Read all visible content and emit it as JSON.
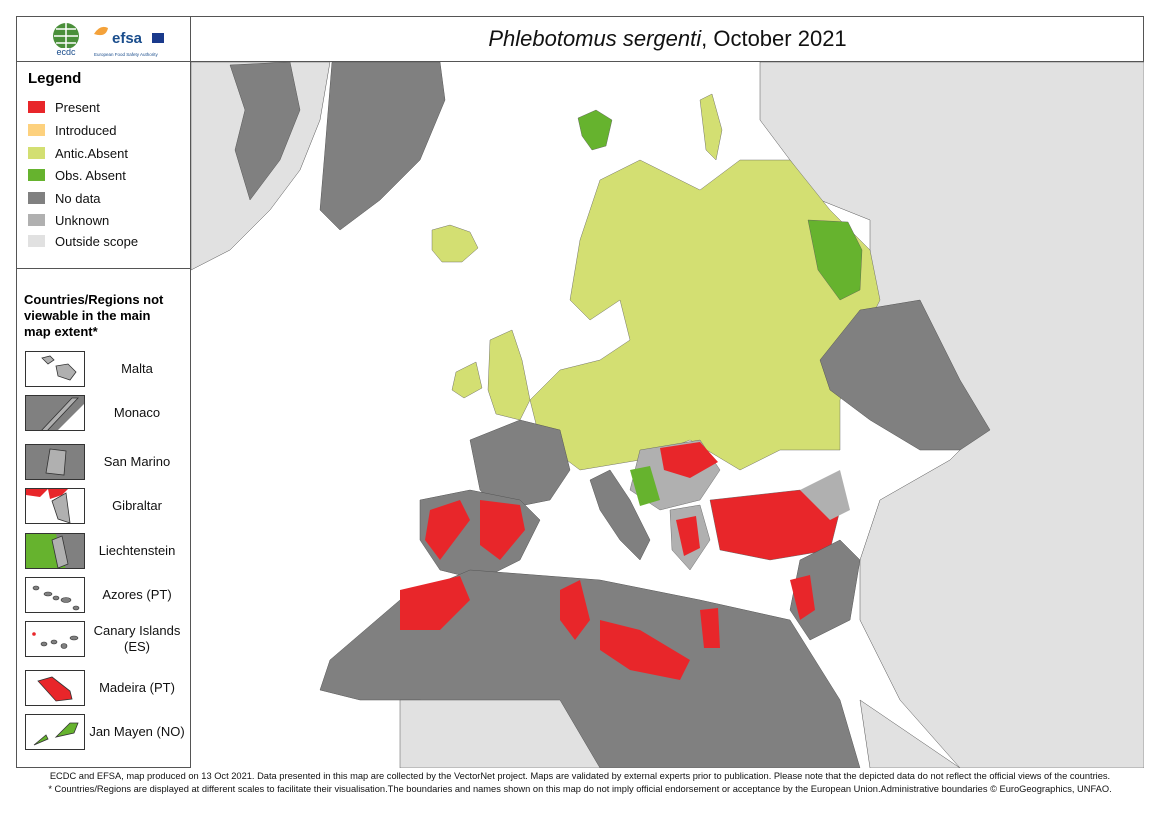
{
  "title": {
    "species": "Phlebotomus sergenti",
    "rest": ", October 2021"
  },
  "logos": {
    "ecdc": "ecdc",
    "efsa": "efsa",
    "efsa_sub": "European Food Safety Authority"
  },
  "legend": {
    "title": "Legend",
    "items": [
      {
        "label": "Present",
        "color": "#e8262a"
      },
      {
        "label": "Introduced",
        "color": "#fdd17e"
      },
      {
        "label": "Antic.Absent",
        "color": "#d3df72"
      },
      {
        "label": "Obs. Absent",
        "color": "#66b32e"
      },
      {
        "label": "No data",
        "color": "#808080"
      },
      {
        "label": "Unknown",
        "color": "#b0b0b0"
      },
      {
        "label": "Outside scope",
        "color": "#e1e1e1"
      }
    ]
  },
  "insets": {
    "title": "Countries/Regions not viewable in the main map extent*",
    "items": [
      {
        "label": "Malta"
      },
      {
        "label": "Monaco"
      },
      {
        "label": "San Marino"
      },
      {
        "label": "Gibraltar"
      },
      {
        "label": "Liechtenstein"
      },
      {
        "label": "Azores (PT)"
      },
      {
        "label": "Canary Islands (ES)"
      },
      {
        "label": "Madeira (PT)"
      },
      {
        "label": "Jan Mayen (NO)"
      }
    ]
  },
  "footer": {
    "line1": "ECDC and EFSA, map produced on 13 Oct 2021. Data presented in this map are collected by the VectorNet project. Maps are validated by external experts prior to publication. Please note that the depicted data do not reflect the official views of the countries.",
    "line2": "* Countries/Regions are displayed at different scales to facilitate their visualisation.The boundaries and names shown on this map do not imply official endorsement or acceptance by the European Union.Administrative boundaries © EuroGeographics, UNFAO."
  }
}
